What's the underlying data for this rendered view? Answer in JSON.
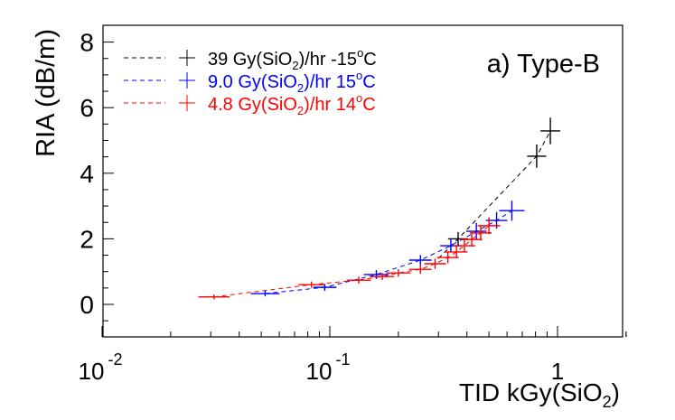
{
  "chart_data": {
    "type": "scatter",
    "title": "a) Type-B",
    "xlabel": "TID kGy(SiO2)",
    "ylabel": "RIA (dB/m)",
    "xscale": "log",
    "xlim": [
      0.01,
      2
    ],
    "ylim": [
      -1,
      8.5
    ],
    "x_tick_labels": [
      "10^-2",
      "10^-1",
      "1"
    ],
    "y_tick_labels": [
      "0",
      "2",
      "4",
      "6",
      "8"
    ],
    "grid": false,
    "legend_position": "upper-left",
    "series": [
      {
        "name": "39 Gy(SiO2)/hr  -15oC",
        "label_main": "39 Gy(SiO",
        "label_sub": "2",
        "label_rest": ")/hr  -15",
        "label_deg": "o",
        "label_end": "C",
        "color": "#000000",
        "x": [
          0.366,
          0.81,
          0.93
        ],
        "y": [
          2.0,
          4.52,
          5.29
        ],
        "xerr": [
          0.025,
          0.05,
          0.06
        ],
        "yerr": [
          0.15,
          0.3,
          0.35
        ]
      },
      {
        "name": "9.0 Gy(SiO2)/hr  15oC",
        "label_main": "9.0 Gy(SiO",
        "label_sub": "2",
        "label_rest": ")/hr  15",
        "label_deg": "o",
        "label_end": "C",
        "color": "#0000ff",
        "x": [
          0.052,
          0.095,
          0.16,
          0.25,
          0.34,
          0.44,
          0.54,
          0.63
        ],
        "y": [
          0.33,
          0.52,
          0.91,
          1.35,
          1.79,
          2.23,
          2.56,
          2.86
        ],
        "xerr": [
          0.006,
          0.008,
          0.015,
          0.02,
          0.025,
          0.03,
          0.04,
          0.06
        ],
        "yerr": [
          0.03,
          0.05,
          0.08,
          0.1,
          0.15,
          0.2,
          0.2,
          0.25
        ]
      },
      {
        "name": "4.8 Gy(SiO2)/hr  14oC",
        "label_main": "4.8 Gy(SiO",
        "label_sub": "2",
        "label_rest": ")/hr  14",
        "label_deg": "o",
        "label_end": "C",
        "color": "#ff0000",
        "x": [
          0.031,
          0.083,
          0.134,
          0.17,
          0.2,
          0.25,
          0.29,
          0.33,
          0.36,
          0.39,
          0.42,
          0.46,
          0.5
        ],
        "y": [
          0.23,
          0.6,
          0.74,
          0.85,
          0.96,
          1.07,
          1.24,
          1.43,
          1.6,
          1.79,
          1.98,
          2.18,
          2.4
        ],
        "xerr": [
          0.004,
          0.008,
          0.012,
          0.015,
          0.018,
          0.02,
          0.022,
          0.025,
          0.028,
          0.03,
          0.03,
          0.035,
          0.04
        ],
        "yerr": [
          0.02,
          0.04,
          0.05,
          0.05,
          0.06,
          0.08,
          0.1,
          0.12,
          0.14,
          0.15,
          0.16,
          0.18,
          0.2
        ]
      }
    ]
  }
}
